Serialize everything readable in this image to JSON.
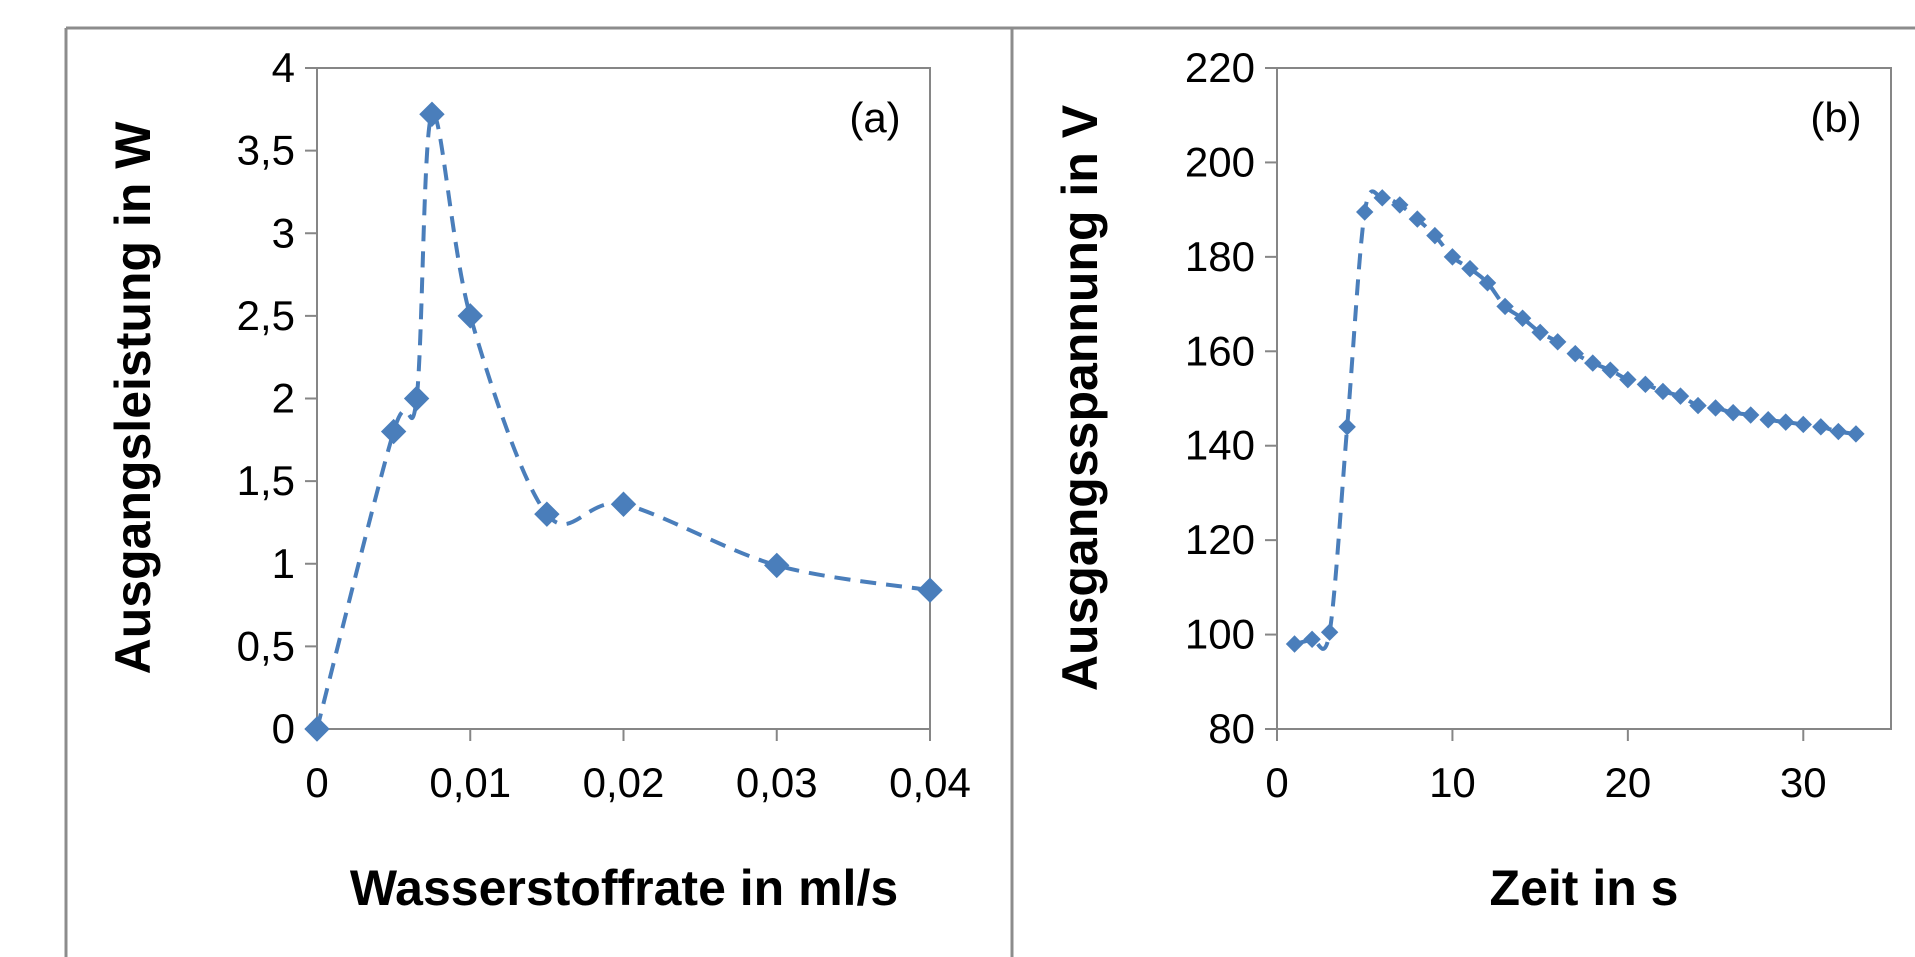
{
  "chart_data": [
    {
      "type": "scatter",
      "panel_label": "(a)",
      "xlabel": "Wasserstoffrate in ml/s",
      "ylabel": "Ausgangsleistung in W",
      "xlim": [
        0,
        0.04
      ],
      "ylim": [
        0,
        4
      ],
      "xticks": [
        0,
        0.01,
        0.02,
        0.03,
        0.04
      ],
      "xtick_labels": [
        "0",
        "0,01",
        "0,02",
        "0,03",
        "0,04"
      ],
      "yticks": [
        0,
        0.5,
        1,
        1.5,
        2,
        2.5,
        3,
        3.5,
        4
      ],
      "ytick_labels": [
        "0",
        "0,5",
        "1",
        "1,5",
        "2",
        "2,5",
        "3",
        "3,5",
        "4"
      ],
      "grid": false,
      "line_style": "dashed",
      "marker": "diamond",
      "color": "#4a7ebb",
      "series": [
        {
          "x": [
            0,
            0.005,
            0.0065,
            0.0075,
            0.01,
            0.015,
            0.02,
            0.03,
            0.04
          ],
          "y": [
            0,
            1.8,
            2.0,
            3.72,
            2.5,
            1.3,
            1.36,
            0.99,
            0.84
          ]
        }
      ]
    },
    {
      "type": "scatter",
      "panel_label": "(b)",
      "xlabel": "Zeit in s",
      "ylabel": "Ausgangsspannung in V",
      "xlim": [
        0,
        35
      ],
      "ylim": [
        80,
        220
      ],
      "xticks": [
        0,
        10,
        20,
        30
      ],
      "xtick_labels": [
        "0",
        "10",
        "20",
        "30"
      ],
      "yticks": [
        80,
        100,
        120,
        140,
        160,
        180,
        200,
        220
      ],
      "ytick_labels": [
        "80",
        "100",
        "120",
        "140",
        "160",
        "180",
        "200",
        "220"
      ],
      "grid": false,
      "line_style": "dashed",
      "marker": "diamond",
      "color": "#4a7ebb",
      "series": [
        {
          "x": [
            1,
            2,
            3,
            4,
            5,
            6,
            7,
            8,
            9,
            10,
            11,
            12,
            13,
            14,
            15,
            16,
            17,
            18,
            19,
            20,
            21,
            22,
            23,
            24,
            25,
            26,
            27,
            28,
            29,
            30,
            31,
            32,
            33
          ],
          "y": [
            98,
            99,
            100.5,
            144,
            189.5,
            192.5,
            191,
            188,
            184.5,
            180,
            177.5,
            174.5,
            169.5,
            167,
            164,
            162,
            159.5,
            157.5,
            156,
            154,
            153,
            151.5,
            150.5,
            148.5,
            148,
            147,
            146.5,
            145.5,
            145,
            144.5,
            144,
            143,
            142.5
          ]
        }
      ]
    }
  ]
}
